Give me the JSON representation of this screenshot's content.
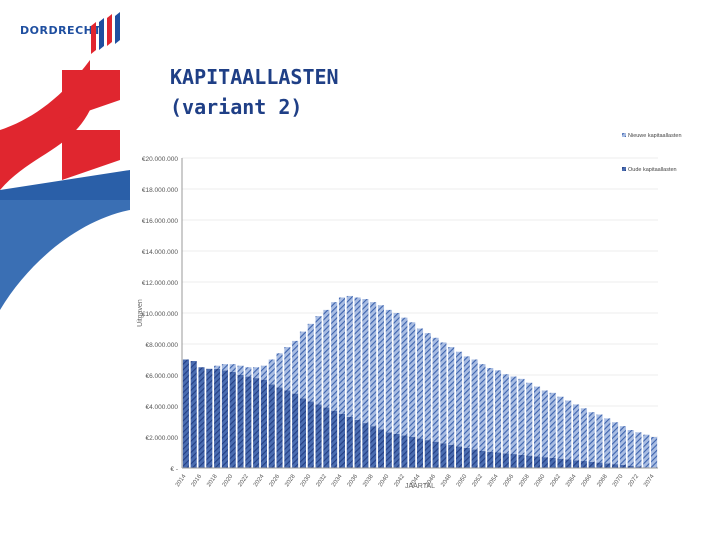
{
  "header": {
    "logo_text": "DORDRECHT",
    "logo_icon": "dordrecht-flag-logo",
    "title_line1": "KAPITAALLASTEN",
    "title_line2": "(variant 2)"
  },
  "colors": {
    "title": "#1f3f86",
    "brand_blue": "#1f4fa0",
    "brand_red": "#e0262f",
    "series_new": "#6f8fca",
    "series_old": "#2d4f97"
  },
  "chart_data": {
    "type": "bar",
    "stacked": true,
    "xlabel": "JAARTAL",
    "ylabel": "Uitgaven",
    "ylim": [
      0,
      20000000
    ],
    "y_ticks": [
      0,
      2000000,
      4000000,
      6000000,
      8000000,
      10000000,
      12000000,
      14000000,
      16000000,
      18000000,
      20000000
    ],
    "y_tick_labels": [
      "€ -",
      "€2.000.000",
      "€4.000.000",
      "€6.000.000",
      "€8.000.000",
      "€10.000.000",
      "€12.000.000",
      "€14.000.000",
      "€16.000.000",
      "€18.000.000",
      "€20.000.000"
    ],
    "x_tick_labels": [
      "2014",
      "2016",
      "2018",
      "2020",
      "2022",
      "2024",
      "2026",
      "2028",
      "2030",
      "2032",
      "2034",
      "2036",
      "2038",
      "2040",
      "2042",
      "2044",
      "2046",
      "2048",
      "2050",
      "2052",
      "2054",
      "2056",
      "2058",
      "2060",
      "2062",
      "2064",
      "2066",
      "2068",
      "2070",
      "2072",
      "2074"
    ],
    "categories": [
      "2014",
      "2015",
      "2016",
      "2017",
      "2018",
      "2019",
      "2020",
      "2021",
      "2022",
      "2023",
      "2024",
      "2025",
      "2026",
      "2027",
      "2028",
      "2029",
      "2030",
      "2031",
      "2032",
      "2033",
      "2034",
      "2035",
      "2036",
      "2037",
      "2038",
      "2039",
      "2040",
      "2041",
      "2042",
      "2043",
      "2044",
      "2045",
      "2046",
      "2047",
      "2048",
      "2049",
      "2050",
      "2051",
      "2052",
      "2053",
      "2054",
      "2055",
      "2056",
      "2057",
      "2058",
      "2059",
      "2060",
      "2061",
      "2062",
      "2063",
      "2064",
      "2065",
      "2066",
      "2067",
      "2068",
      "2069",
      "2070",
      "2071",
      "2072",
      "2073",
      "2074"
    ],
    "legend_position": "top-right",
    "series": [
      {
        "name": "Oude kapitaallasten",
        "values": [
          7000000,
          6900000,
          6500000,
          6400000,
          6400000,
          6300000,
          6200000,
          6000000,
          5900000,
          5800000,
          5700000,
          5400000,
          5200000,
          5000000,
          4800000,
          4500000,
          4300000,
          4100000,
          3900000,
          3700000,
          3500000,
          3300000,
          3100000,
          2900000,
          2700000,
          2500000,
          2300000,
          2200000,
          2100000,
          2000000,
          1900000,
          1800000,
          1700000,
          1600000,
          1500000,
          1400000,
          1300000,
          1200000,
          1100000,
          1050000,
          1000000,
          950000,
          900000,
          850000,
          800000,
          750000,
          700000,
          650000,
          600000,
          550000,
          500000,
          450000,
          400000,
          350000,
          300000,
          250000,
          200000,
          150000,
          100000,
          50000,
          0
        ]
      },
      {
        "name": "Nieuwe kapitaallasten",
        "values": [
          0,
          0,
          0,
          0,
          200000,
          400000,
          500000,
          600000,
          600000,
          700000,
          900000,
          1600000,
          2200000,
          2800000,
          3400000,
          4300000,
          5000000,
          5700000,
          6300000,
          7000000,
          7500000,
          7800000,
          7900000,
          8000000,
          8000000,
          8000000,
          7900000,
          7800000,
          7600000,
          7400000,
          7100000,
          6900000,
          6700000,
          6500000,
          6300000,
          6100000,
          5900000,
          5800000,
          5600000,
          5400000,
          5300000,
          5100000,
          5000000,
          4900000,
          4700000,
          4500000,
          4300000,
          4200000,
          4000000,
          3800000,
          3600000,
          3400000,
          3200000,
          3100000,
          2900000,
          2700000,
          2500000,
          2300000,
          2200000,
          2100000,
          2000000
        ]
      }
    ]
  }
}
